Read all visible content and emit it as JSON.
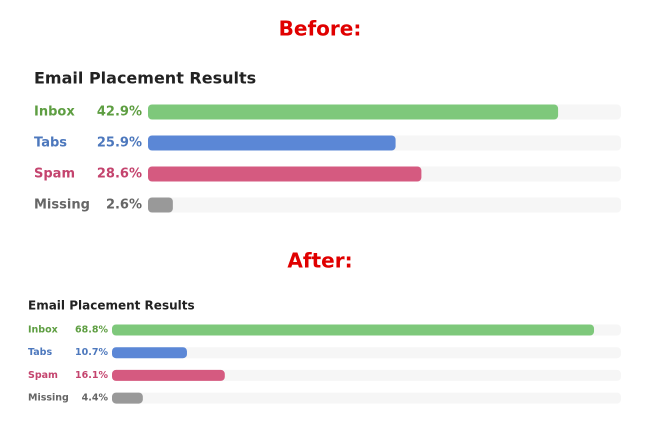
{
  "chart_data": [
    {
      "type": "bar",
      "heading": "Before:",
      "title": "Email Placement Results",
      "categories": [
        "Inbox",
        "Tabs",
        "Spam",
        "Missing"
      ],
      "values": [
        42.9,
        25.9,
        28.6,
        2.6
      ],
      "value_labels": [
        "42.9%",
        "25.9%",
        "28.6%",
        "2.6%"
      ],
      "colors": [
        "#7ec87b",
        "#5b87d6",
        "#d55a80",
        "#999999"
      ],
      "label_colors": [
        "#5e9e42",
        "#4d78bd",
        "#c4446e",
        "#666666"
      ]
    },
    {
      "type": "bar",
      "heading": "After:",
      "title": "Email Placement Results",
      "categories": [
        "Inbox",
        "Tabs",
        "Spam",
        "Missing"
      ],
      "values": [
        68.8,
        10.7,
        16.1,
        4.4
      ],
      "value_labels": [
        "68.8%",
        "10.7%",
        "16.1%",
        "4.4%"
      ],
      "colors": [
        "#7ec87b",
        "#5b87d6",
        "#d55a80",
        "#999999"
      ],
      "label_colors": [
        "#5e9e42",
        "#4d78bd",
        "#c4446e",
        "#666666"
      ]
    }
  ]
}
